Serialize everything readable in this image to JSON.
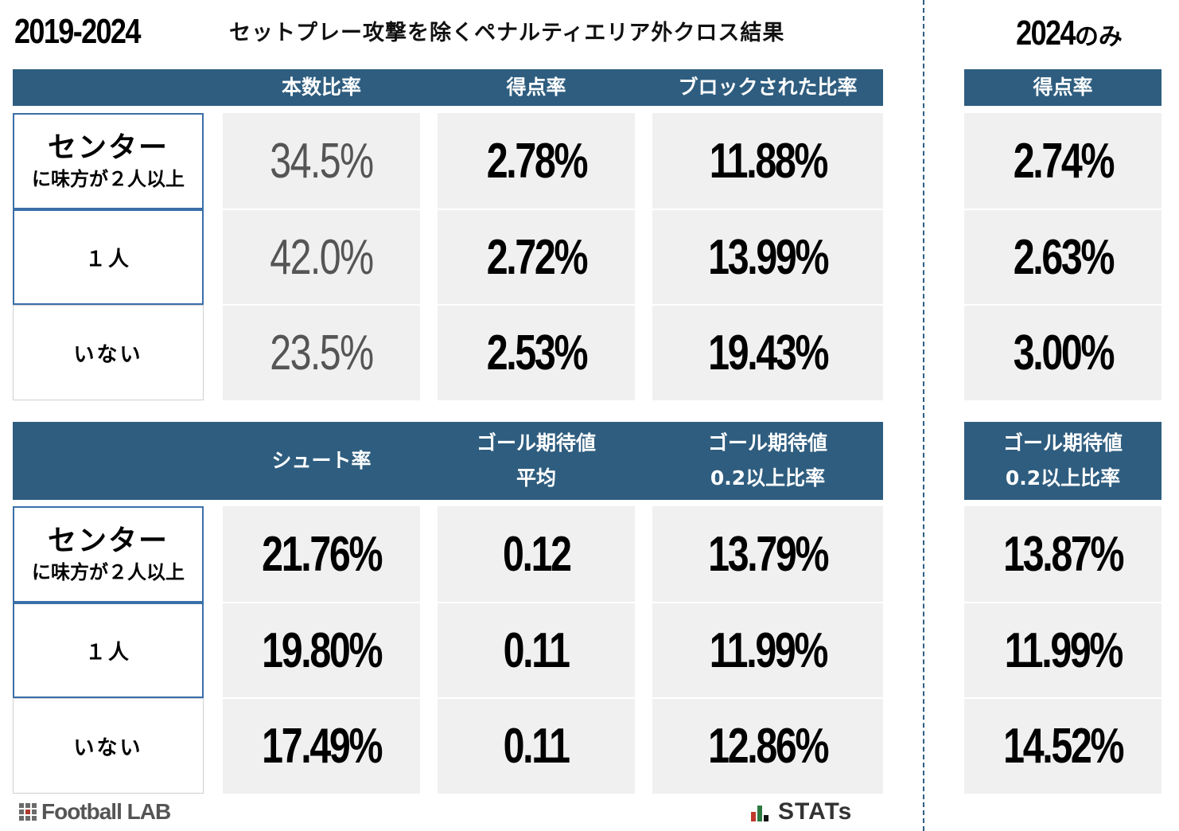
{
  "period_label": "2019-2024",
  "subtitle": "セットプレー攻撃を除くペナルティエリア外クロス結果",
  "right_title_year": "2024",
  "right_title_suffix": "のみ",
  "chart_data": [
    {
      "type": "table",
      "columns": [
        "本数比率",
        "得点率",
        "ブロックされた比率"
      ],
      "right_column": "得点率",
      "rows": [
        {
          "label_main": "センター",
          "label_sub": "に味方が２人以上",
          "values": [
            "34.5%",
            "2.78%",
            "11.88%"
          ],
          "right": "2.74%"
        },
        {
          "label_main": "１人",
          "label_sub": "",
          "values": [
            "42.0%",
            "2.72%",
            "13.99%"
          ],
          "right": "2.63%"
        },
        {
          "label_main": "いない",
          "label_sub": "",
          "values": [
            "23.5%",
            "2.53%",
            "19.43%"
          ],
          "right": "3.00%"
        }
      ]
    },
    {
      "type": "table",
      "columns": [
        "シュート率",
        "ゴール期待値\n平均",
        "ゴール期待値\n0.2以上比率"
      ],
      "right_column": "ゴール期待値\n0.2以上比率",
      "rows": [
        {
          "label_main": "センター",
          "label_sub": "に味方が２人以上",
          "values": [
            "21.76%",
            "0.12",
            "13.79%"
          ],
          "right": "13.87%"
        },
        {
          "label_main": "１人",
          "label_sub": "",
          "values": [
            "19.80%",
            "0.11",
            "11.99%"
          ],
          "right": "11.99%"
        },
        {
          "label_main": "いない",
          "label_sub": "",
          "values": [
            "17.49%",
            "0.11",
            "12.86%"
          ],
          "right": "14.52%"
        }
      ]
    }
  ],
  "logos": {
    "football_lab": "Football LAB",
    "stats": "STATs"
  }
}
